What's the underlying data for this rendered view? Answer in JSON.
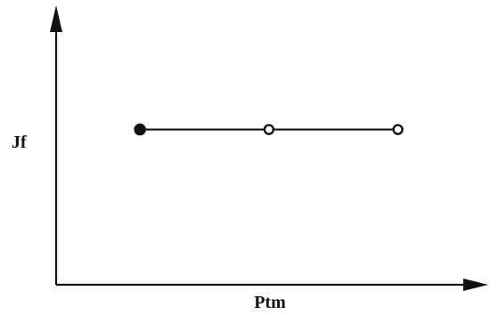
{
  "chart_data": {
    "type": "line",
    "title": "",
    "xlabel": "Ptm",
    "ylabel": "Jf",
    "grid": false,
    "legend": "none",
    "x_ticks_shown": false,
    "y_ticks_shown": false,
    "axis_arrows": true,
    "series": [
      {
        "name": "",
        "x": [
          1,
          2,
          3
        ],
        "y": [
          1,
          1,
          1
        ],
        "markers": [
          "filled-circle",
          "open-circle",
          "open-circle"
        ]
      }
    ],
    "xlim": [
      0.35,
      3.7
    ],
    "ylim": [
      0,
      1.8
    ],
    "colors": {
      "ink": "#111111",
      "background": "#ffffff"
    }
  }
}
